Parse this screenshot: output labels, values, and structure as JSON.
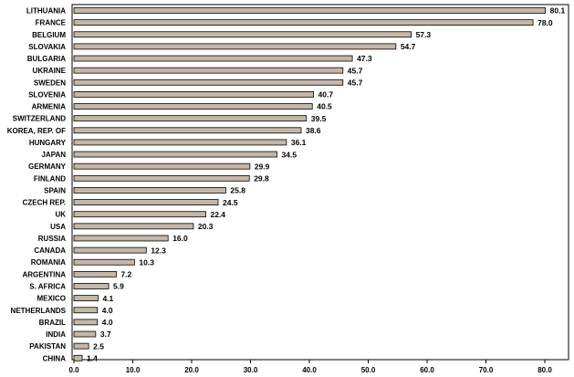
{
  "chart_data": {
    "type": "bar",
    "orientation": "horizontal",
    "title": "",
    "xlabel": "",
    "ylabel": "",
    "xlim": [
      0,
      85
    ],
    "xticks": [
      "0.0",
      "10.0",
      "20.0",
      "30.0",
      "40.0",
      "50.0",
      "60.0",
      "70.0",
      "80.0"
    ],
    "grid": false,
    "bar_color": "#c5b7a8",
    "bar_edge_color": "#000000",
    "categories": [
      "LITHUANIA",
      "FRANCE",
      "BELGIUM",
      "SLOVAKIA",
      "BULGARIA",
      "UKRAINE",
      "SWEDEN",
      "SLOVENIA",
      "ARMENIA",
      "SWITZERLAND",
      "KOREA, REP. OF",
      "HUNGARY",
      "JAPAN",
      "GERMANY",
      "FINLAND",
      "SPAIN",
      "CZECH REP.",
      "UK",
      "USA",
      "RUSSIA",
      "CANADA",
      "ROMANIA",
      "ARGENTINA",
      "S. AFRICA",
      "MEXICO",
      "NETHERLANDS",
      "BRAZIL",
      "INDIA",
      "PAKISTAN",
      "CHINA"
    ],
    "values": [
      80.1,
      78.0,
      57.3,
      54.7,
      47.3,
      45.7,
      45.7,
      40.7,
      40.5,
      39.5,
      38.6,
      36.1,
      34.5,
      29.9,
      29.8,
      25.8,
      24.5,
      22.4,
      20.3,
      16.0,
      12.3,
      10.3,
      7.2,
      5.9,
      4.1,
      4.0,
      4.0,
      3.7,
      2.5,
      1.4
    ],
    "value_labels": [
      "80.1",
      "78.0",
      "57.3",
      "54.7",
      "47.3",
      "45.7",
      "45.7",
      "40.7",
      "40.5",
      "39.5",
      "38.6",
      "36.1",
      "34.5",
      "29.9",
      "29.8",
      "25.8",
      "24.5",
      "22.4",
      "20.3",
      "16.0",
      "12.3",
      "10.3",
      "7.2",
      "5.9",
      "4.1",
      "4.0",
      "4.0",
      "3.7",
      "2.5",
      "1.4"
    ]
  }
}
